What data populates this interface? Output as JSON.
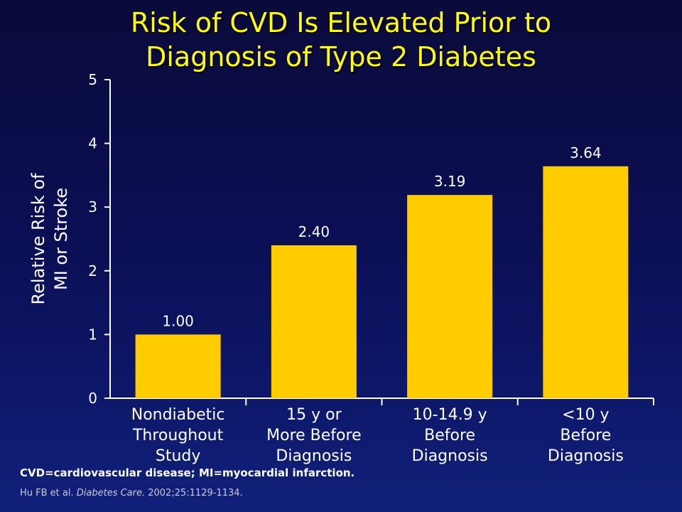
{
  "title": "Risk of CVD Is Elevated Prior to\nDiagnosis of Type 2 Diabetes",
  "footnote": "CVD=cardiovascular disease; MI=myocardial infarction.",
  "citation": {
    "authors": "Hu FB et al.",
    "journal": "Diabetes Care.",
    "details": "2002;25:1129-1134."
  },
  "colors": {
    "bar": "#ffcc00",
    "title": "#ffff00",
    "axis": "#ffffff",
    "background": "#0b0f56"
  },
  "chart_data": {
    "type": "bar",
    "title": "Risk of CVD Is Elevated Prior to Diagnosis of Type 2 Diabetes",
    "ylabel": "Relative Risk of\nMI or Stroke",
    "xlabel": "",
    "ylim": [
      0,
      5
    ],
    "yticks": [
      0,
      1,
      2,
      3,
      4,
      5
    ],
    "grid": false,
    "categories": [
      "Nondiabetic\nThroughout\nStudy",
      "15 y or\nMore Before\nDiagnosis",
      "10-14.9 y\nBefore\nDiagnosis",
      "<10 y\nBefore\nDiagnosis"
    ],
    "values": [
      1.0,
      2.4,
      3.19,
      3.64
    ],
    "data_labels": [
      "1.00",
      "2.40",
      "3.19",
      "3.64"
    ]
  }
}
